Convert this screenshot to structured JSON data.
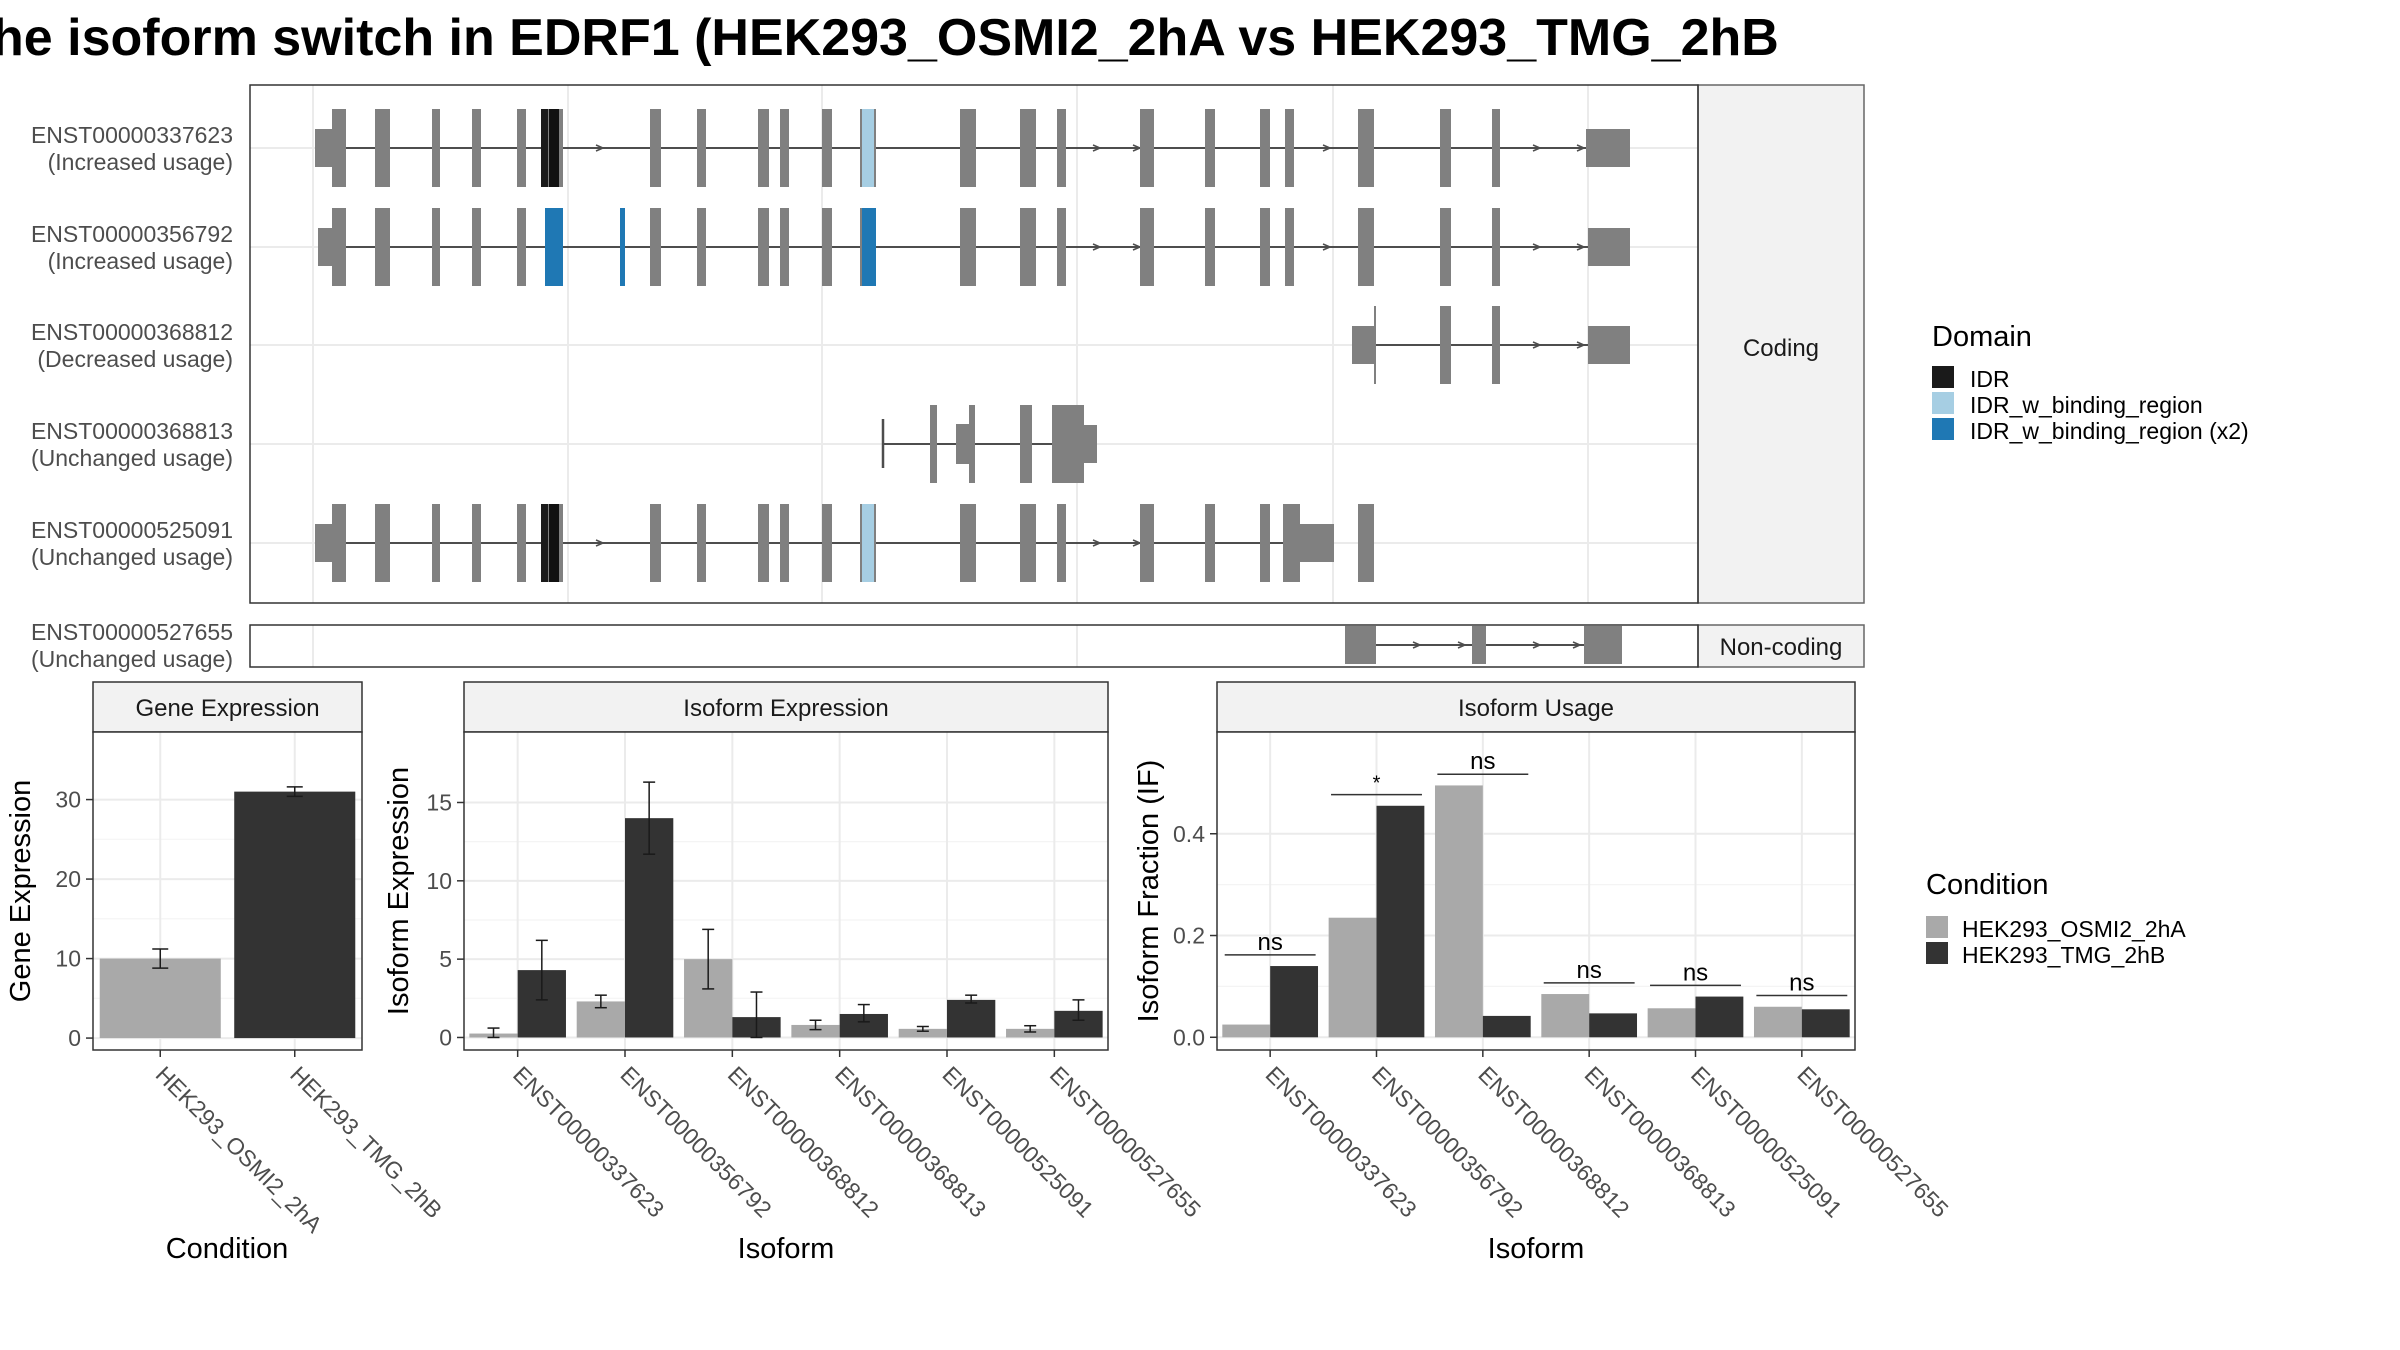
{
  "title": "he isoform switch in EDRF1 (HEK293_OSMI2_2hA vs HEK293_TMG_2hB",
  "structure": {
    "coding_label": "Coding",
    "noncoding_label": "Non-coding",
    "transcripts": [
      {
        "id": "ENST00000337623",
        "usage": "(Increased usage)"
      },
      {
        "id": "ENST00000356792",
        "usage": "(Increased usage)"
      },
      {
        "id": "ENST00000368812",
        "usage": "(Decreased usage)"
      },
      {
        "id": "ENST00000368813",
        "usage": "(Unchanged usage)"
      },
      {
        "id": "ENST00000525091",
        "usage": "(Unchanged usage)"
      },
      {
        "id": "ENST00000527655",
        "usage": "(Unchanged usage)"
      }
    ]
  },
  "legends": {
    "domain": {
      "title": "Domain",
      "items": [
        {
          "label": "IDR",
          "color": "#1a1a1a"
        },
        {
          "label": "IDR_w_binding_region",
          "color": "#a6cee3"
        },
        {
          "label": "IDR_w_binding_region (x2)",
          "color": "#1f78b4"
        }
      ]
    },
    "condition": {
      "title": "Condition",
      "items": [
        {
          "label": "HEK293_OSMI2_2hA",
          "color": "#a9a9a9"
        },
        {
          "label": "HEK293_TMG_2hB",
          "color": "#333333"
        }
      ]
    }
  },
  "chart_data": [
    {
      "type": "bar",
      "title": "Gene Expression",
      "xlabel": "Condition",
      "ylabel": "Gene Expression",
      "ylim": [
        -1.5,
        38.5
      ],
      "yticks": [
        0,
        10,
        20,
        30
      ],
      "categories": [
        "HEK293_OSMI2_2hA",
        "HEK293_TMG_2hB"
      ],
      "values": [
        10.0,
        31.0
      ],
      "errors": [
        [
          8.8,
          11.2
        ],
        [
          30.4,
          31.6
        ]
      ],
      "colors": [
        "#a9a9a9",
        "#333333"
      ]
    },
    {
      "type": "bar",
      "title": "Isoform Expression",
      "xlabel": "Isoform",
      "ylabel": "Isoform Expression",
      "ylim": [
        -0.8,
        19.5
      ],
      "yticks": [
        0,
        5,
        10,
        15
      ],
      "categories": [
        "ENST00000337623",
        "ENST00000356792",
        "ENST00000368812",
        "ENST00000368813",
        "ENST00000525091",
        "ENST00000527655"
      ],
      "series": [
        {
          "name": "HEK293_OSMI2_2hA",
          "color": "#a9a9a9",
          "values": [
            0.25,
            2.3,
            5.0,
            0.8,
            0.55,
            0.55
          ],
          "errors": [
            [
              0.0,
              0.6
            ],
            [
              1.9,
              2.7
            ],
            [
              3.1,
              6.9
            ],
            [
              0.5,
              1.1
            ],
            [
              0.4,
              0.7
            ],
            [
              0.35,
              0.75
            ]
          ]
        },
        {
          "name": "HEK293_TMG_2hB",
          "color": "#333333",
          "values": [
            4.3,
            14.0,
            1.3,
            1.5,
            2.4,
            1.7
          ],
          "errors": [
            [
              2.4,
              6.2
            ],
            [
              11.7,
              16.3
            ],
            [
              0.0,
              2.9
            ],
            [
              1.0,
              2.1
            ],
            [
              2.2,
              2.7
            ],
            [
              1.1,
              2.4
            ]
          ]
        }
      ]
    },
    {
      "type": "bar",
      "title": "Isoform Usage",
      "xlabel": "Isoform",
      "ylabel": "Isoform Fraction (IF)",
      "ylim": [
        -0.025,
        0.6
      ],
      "yticks": [
        0.0,
        0.2,
        0.4
      ],
      "ytick_labels": [
        "0.0",
        "0.2",
        "0.4"
      ],
      "categories": [
        "ENST00000337623",
        "ENST00000356792",
        "ENST00000368812",
        "ENST00000368813",
        "ENST00000525091",
        "ENST00000527655"
      ],
      "series": [
        {
          "name": "HEK293_OSMI2_2hA",
          "color": "#a9a9a9",
          "values": [
            0.025,
            0.235,
            0.495,
            0.085,
            0.057,
            0.06
          ]
        },
        {
          "name": "HEK293_TMG_2hB",
          "color": "#333333",
          "values": [
            0.14,
            0.455,
            0.042,
            0.047,
            0.08,
            0.055
          ]
        }
      ],
      "significance": [
        "ns",
        "*",
        "ns",
        "ns",
        "ns",
        "ns"
      ]
    }
  ]
}
